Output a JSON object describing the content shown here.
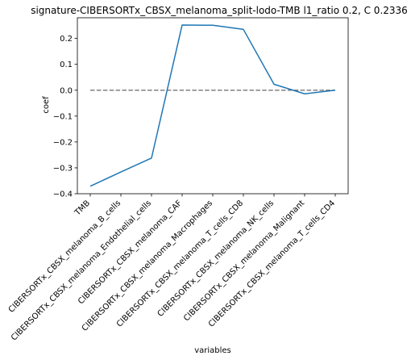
{
  "chart_data": {
    "type": "line",
    "title": "signature-CIBERSORTx_CBSX_melanoma_split-lodo-TMB l1_ratio 0.2, C 0.2336",
    "xlabel": "variables",
    "ylabel": "coef",
    "categories": [
      "TMB",
      "CIBERSORTx_CBSX_melanoma_B_cells",
      "CIBERSORTx_CBSX_melanoma_Endothelial_cells",
      "CIBERSORTx_CBSX_melanoma_CAF",
      "CIBERSORTx_CBSX_melanoma_Macrophages",
      "CIBERSORTx_CBSX_melanoma_T_cells_CD8",
      "CIBERSORTx_CBSX_melanoma_NK_cells",
      "CIBERSORTx_CBSX_melanoma_Malignant",
      "CIBERSORTx_CBSX_melanoma_T_cells_CD4"
    ],
    "series": [
      {
        "values": [
          -0.371,
          -0.316,
          -0.262,
          0.252,
          0.251,
          0.235,
          0.023,
          -0.014,
          0.0
        ],
        "color": "#1f77b4"
      }
    ],
    "reference_line": {
      "y": 0,
      "style": "dashed",
      "color": "#808080"
    },
    "ylim": [
      -0.4,
      0.28
    ],
    "yticks": [
      -0.4,
      -0.3,
      -0.2,
      -0.1,
      0.0,
      0.1,
      0.2
    ],
    "ytick_labels": [
      "−0.4",
      "−0.3",
      "−0.2",
      "−0.1",
      "0.0",
      "0.1",
      "0.2"
    ],
    "grid": false
  }
}
